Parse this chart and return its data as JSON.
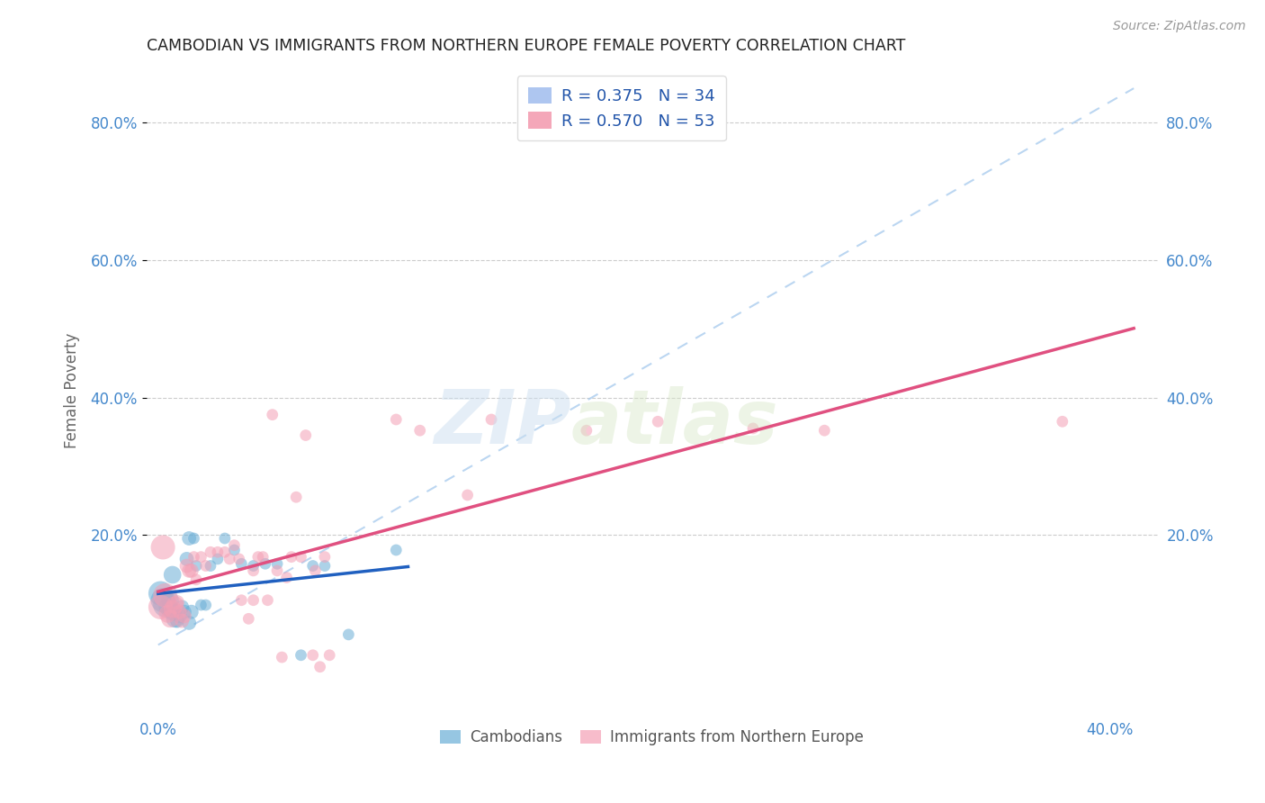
{
  "title": "CAMBODIAN VS IMMIGRANTS FROM NORTHERN EUROPE FEMALE POVERTY CORRELATION CHART",
  "source": "Source: ZipAtlas.com",
  "ylabel": "Female Poverty",
  "legend_label1": "R = 0.375   N = 34",
  "legend_label2": "R = 0.570   N = 53",
  "legend_color1": "#aec6f0",
  "legend_color2": "#f4a7b9",
  "watermark_zip": "ZIP",
  "watermark_atlas": "atlas",
  "blue_color": "#6aaed6",
  "pink_color": "#f4a0b5",
  "blue_line_color": "#2060c0",
  "pink_line_color": "#e05080",
  "xlim": [
    -0.005,
    0.42
  ],
  "ylim": [
    -0.06,
    0.88
  ],
  "ytick_vals": [
    0.2,
    0.4,
    0.6,
    0.8
  ],
  "ytick_labels": [
    "20.0%",
    "40.0%",
    "60.0%",
    "80.0%"
  ],
  "blue_scatter": [
    [
      0.001,
      0.115
    ],
    [
      0.002,
      0.105
    ],
    [
      0.003,
      0.098
    ],
    [
      0.004,
      0.095
    ],
    [
      0.005,
      0.092
    ],
    [
      0.005,
      0.105
    ],
    [
      0.006,
      0.088
    ],
    [
      0.006,
      0.142
    ],
    [
      0.007,
      0.078
    ],
    [
      0.008,
      0.075
    ],
    [
      0.009,
      0.082
    ],
    [
      0.01,
      0.095
    ],
    [
      0.011,
      0.088
    ],
    [
      0.012,
      0.165
    ],
    [
      0.013,
      0.072
    ],
    [
      0.013,
      0.195
    ],
    [
      0.014,
      0.088
    ],
    [
      0.015,
      0.195
    ],
    [
      0.016,
      0.155
    ],
    [
      0.018,
      0.098
    ],
    [
      0.02,
      0.098
    ],
    [
      0.022,
      0.155
    ],
    [
      0.025,
      0.165
    ],
    [
      0.028,
      0.195
    ],
    [
      0.032,
      0.178
    ],
    [
      0.035,
      0.158
    ],
    [
      0.04,
      0.155
    ],
    [
      0.045,
      0.158
    ],
    [
      0.05,
      0.158
    ],
    [
      0.06,
      0.025
    ],
    [
      0.065,
      0.155
    ],
    [
      0.07,
      0.155
    ],
    [
      0.08,
      0.055
    ],
    [
      0.1,
      0.178
    ]
  ],
  "pink_scatter": [
    [
      0.001,
      0.095
    ],
    [
      0.002,
      0.182
    ],
    [
      0.003,
      0.112
    ],
    [
      0.004,
      0.085
    ],
    [
      0.005,
      0.078
    ],
    [
      0.006,
      0.092
    ],
    [
      0.007,
      0.098
    ],
    [
      0.008,
      0.102
    ],
    [
      0.009,
      0.088
    ],
    [
      0.01,
      0.075
    ],
    [
      0.011,
      0.082
    ],
    [
      0.012,
      0.155
    ],
    [
      0.013,
      0.148
    ],
    [
      0.014,
      0.148
    ],
    [
      0.015,
      0.168
    ],
    [
      0.016,
      0.135
    ],
    [
      0.018,
      0.168
    ],
    [
      0.02,
      0.155
    ],
    [
      0.022,
      0.175
    ],
    [
      0.025,
      0.175
    ],
    [
      0.028,
      0.175
    ],
    [
      0.03,
      0.165
    ],
    [
      0.032,
      0.185
    ],
    [
      0.034,
      0.165
    ],
    [
      0.035,
      0.105
    ],
    [
      0.038,
      0.078
    ],
    [
      0.04,
      0.105
    ],
    [
      0.04,
      0.148
    ],
    [
      0.042,
      0.168
    ],
    [
      0.044,
      0.168
    ],
    [
      0.046,
      0.105
    ],
    [
      0.048,
      0.375
    ],
    [
      0.05,
      0.148
    ],
    [
      0.052,
      0.022
    ],
    [
      0.054,
      0.138
    ],
    [
      0.056,
      0.168
    ],
    [
      0.058,
      0.255
    ],
    [
      0.06,
      0.168
    ],
    [
      0.062,
      0.345
    ],
    [
      0.065,
      0.025
    ],
    [
      0.066,
      0.148
    ],
    [
      0.068,
      0.008
    ],
    [
      0.07,
      0.168
    ],
    [
      0.072,
      0.025
    ],
    [
      0.1,
      0.368
    ],
    [
      0.11,
      0.352
    ],
    [
      0.13,
      0.258
    ],
    [
      0.14,
      0.368
    ],
    [
      0.18,
      0.352
    ],
    [
      0.21,
      0.365
    ],
    [
      0.25,
      0.355
    ],
    [
      0.28,
      0.352
    ],
    [
      0.38,
      0.365
    ]
  ]
}
